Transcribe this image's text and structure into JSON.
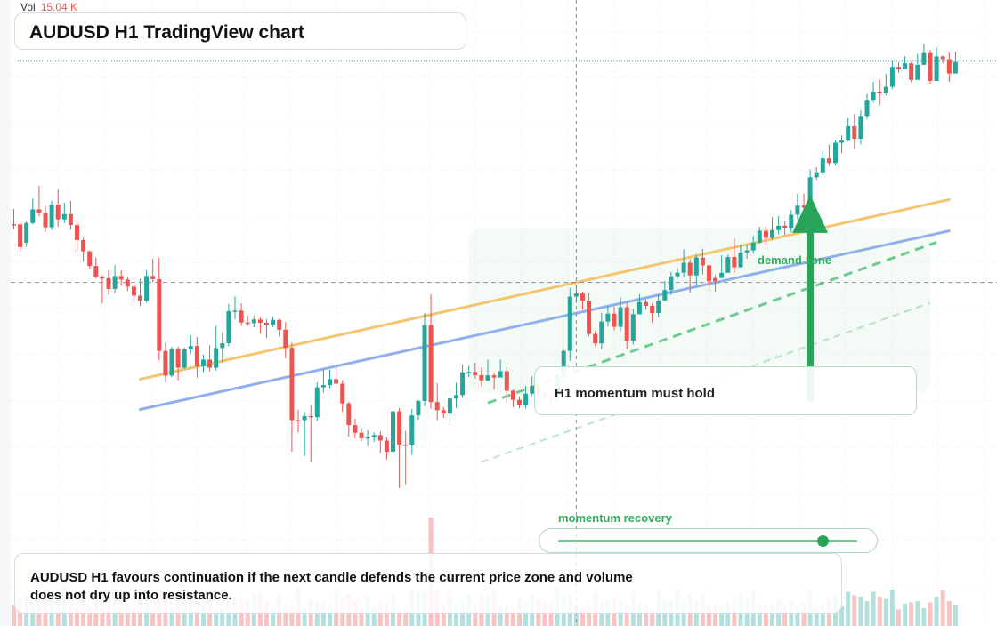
{
  "header": {
    "title": "AUDUSD H1 TradingView chart",
    "volume_label": "Vol",
    "volume_value": "15.04 K"
  },
  "annotations": {
    "zone_label": "demand zone",
    "callout": "H1 momentum must hold",
    "momentum_label": "momentum recovery",
    "momentum_level": 0.88,
    "summary": "AUDUSD H1 favours continuation if the next candle defends the current price zone and volume does not dry up into resistance."
  },
  "colors": {
    "up": "#26a69a",
    "down": "#ef5350",
    "trendline_upper": "#f5c46e",
    "trendline_lower": "#8fb0ec",
    "accent_green": "#27a457"
  },
  "chart_data": {
    "type": "candlestick",
    "symbol": "AUDUSD",
    "timeframe": "H1",
    "candle_count": 150,
    "ylim": [
      0,
      100
    ],
    "price_range": [
      0,
      100
    ],
    "crosshair": {
      "x_index": 89,
      "y": 50.6
    },
    "last_price_level": 95.2,
    "trendlines": [
      {
        "name": "upper trendline",
        "from": [
          20,
          31.1
        ],
        "to": [
          148,
          67.3
        ]
      },
      {
        "name": "lower trendline",
        "from": [
          20,
          25.0
        ],
        "to": [
          148,
          61.0
        ]
      }
    ],
    "projection_lines": [
      {
        "from": [
          75,
          26.3
        ],
        "to": [
          146,
          58.7
        ]
      },
      {
        "from": [
          74,
          14.4
        ],
        "to": [
          145,
          46.5
        ]
      }
    ],
    "demand_zone": {
      "x": [
        72,
        145
      ],
      "y": [
        28.3,
        61.6
      ]
    },
    "arrow": {
      "x": 126,
      "y": [
        27.3,
        68.3
      ]
    },
    "candles": [
      [
        62.32,
        62.32,
        65.41,
        61.39,
        "down"
      ],
      [
        62.32,
        57.72,
        62.81,
        56.79,
        "down"
      ],
      [
        58.61,
        62.59,
        63.05,
        57.81,
        "up"
      ],
      [
        62.59,
        65.33,
        67.55,
        62.35,
        "up"
      ],
      [
        65.33,
        64.69,
        70.1,
        64.01,
        "down"
      ],
      [
        64.69,
        61.72,
        65.99,
        60.73,
        "down"
      ],
      [
        61.72,
        66.32,
        67.04,
        61.16,
        "up"
      ],
      [
        66.32,
        63.32,
        69.42,
        61.82,
        "down"
      ],
      [
        63.32,
        64.37,
        66.63,
        62.55,
        "up"
      ],
      [
        64.37,
        62.17,
        67.05,
        61.25,
        "down"
      ],
      [
        62.17,
        59.14,
        62.94,
        56.79,
        "down"
      ],
      [
        59.14,
        56.87,
        59.62,
        54.77,
        "down"
      ],
      [
        56.87,
        53.92,
        57.07,
        53.33,
        "down"
      ],
      [
        53.92,
        51.66,
        55.6,
        51.36,
        "down"
      ],
      [
        51.66,
        51.46,
        52.04,
        46.39,
        "down"
      ],
      [
        51.46,
        49.29,
        53.11,
        48.16,
        "down"
      ],
      [
        49.29,
        51.9,
        54.12,
        48.37,
        "up"
      ],
      [
        51.9,
        51.19,
        53.05,
        49.98,
        "down"
      ],
      [
        51.19,
        49.76,
        51.68,
        48.86,
        "down"
      ],
      [
        49.76,
        47.94,
        50.23,
        46.64,
        "down"
      ],
      [
        47.94,
        46.89,
        51.31,
        45.79,
        "down"
      ],
      [
        46.89,
        51.91,
        53.14,
        46.54,
        "up"
      ],
      [
        51.91,
        51.27,
        55.39,
        50.65,
        "down"
      ],
      [
        51.27,
        36.79,
        55.55,
        34.92,
        "down"
      ],
      [
        36.79,
        31.83,
        38.46,
        30.45,
        "down"
      ],
      [
        31.83,
        37.29,
        37.68,
        31.47,
        "up"
      ],
      [
        37.29,
        33.41,
        37.69,
        30.83,
        "down"
      ],
      [
        33.41,
        37.16,
        37.48,
        33.17,
        "up"
      ],
      [
        37.16,
        37.79,
        39.92,
        36.26,
        "up"
      ],
      [
        37.79,
        33.68,
        39.61,
        31.42,
        "down"
      ],
      [
        33.68,
        35.04,
        36.03,
        32.51,
        "up"
      ],
      [
        35.04,
        33.41,
        37.93,
        32.68,
        "down"
      ],
      [
        33.41,
        37.38,
        41.89,
        32.83,
        "up"
      ],
      [
        37.38,
        38.35,
        40.55,
        34.47,
        "up"
      ],
      [
        38.35,
        44.82,
        46.27,
        37.74,
        "up"
      ],
      [
        44.82,
        44.93,
        47.82,
        43.19,
        "up"
      ],
      [
        44.93,
        42.53,
        46.39,
        41.85,
        "down"
      ],
      [
        42.53,
        42.39,
        43.94,
        41.86,
        "down"
      ],
      [
        42.39,
        43.13,
        43.93,
        41.56,
        "up"
      ],
      [
        43.13,
        42.48,
        43.62,
        40.37,
        "down"
      ],
      [
        42.48,
        42.08,
        43.18,
        39.37,
        "down"
      ],
      [
        42.08,
        43.06,
        43.75,
        41.55,
        "up"
      ],
      [
        43.06,
        41.06,
        43.31,
        39.72,
        "down"
      ],
      [
        41.06,
        37.43,
        42.59,
        35.28,
        "down"
      ],
      [
        37.43,
        22.84,
        38.5,
        16.51,
        "down"
      ],
      [
        22.84,
        22.84,
        25.01,
        20.39,
        "down"
      ],
      [
        22.84,
        23.68,
        24.53,
        15.56,
        "up"
      ],
      [
        23.68,
        23.44,
        25.87,
        14.3,
        "down"
      ],
      [
        23.44,
        29.46,
        30.51,
        22.66,
        "up"
      ],
      [
        29.46,
        29.91,
        33.01,
        28.4,
        "up"
      ],
      [
        29.91,
        31.12,
        33.02,
        29.26,
        "up"
      ],
      [
        31.12,
        30.19,
        34.19,
        29.4,
        "down"
      ],
      [
        30.19,
        26.23,
        30.91,
        24.54,
        "down"
      ],
      [
        26.23,
        21.83,
        26.58,
        19.53,
        "down"
      ],
      [
        21.83,
        20.3,
        23.11,
        19.17,
        "down"
      ],
      [
        20.3,
        19.21,
        21.21,
        18.59,
        "down"
      ],
      [
        19.21,
        19.4,
        20.81,
        17.66,
        "up"
      ],
      [
        19.4,
        19.83,
        20.37,
        18.48,
        "up"
      ],
      [
        19.83,
        18.74,
        20.59,
        16.17,
        "down"
      ],
      [
        18.74,
        16.47,
        19.37,
        14.9,
        "down"
      ],
      [
        16.47,
        24.62,
        25.45,
        16.16,
        "up"
      ],
      [
        24.62,
        17.93,
        25.32,
        9.16,
        "down"
      ],
      [
        17.93,
        17.93,
        20.69,
        9.93,
        "down"
      ],
      [
        17.93,
        23.81,
        25.08,
        15.84,
        "up"
      ],
      [
        23.81,
        26.71,
        26.97,
        22.89,
        "up"
      ],
      [
        26.71,
        42.01,
        44.48,
        25.64,
        "up"
      ],
      [
        42.01,
        26.48,
        48.21,
        25.15,
        "down"
      ],
      [
        26.48,
        24.85,
        30.28,
        22.84,
        "down"
      ],
      [
        24.85,
        24.16,
        25.47,
        23.29,
        "down"
      ],
      [
        24.16,
        27.2,
        28.75,
        21.68,
        "up"
      ],
      [
        27.2,
        27.9,
        30.38,
        25.29,
        "up"
      ],
      [
        27.9,
        32.49,
        34.07,
        27.33,
        "up"
      ],
      [
        32.49,
        32.55,
        33.79,
        31.49,
        "up"
      ],
      [
        32.55,
        31.92,
        34.38,
        31.24,
        "down"
      ],
      [
        31.92,
        30.85,
        33.48,
        29.67,
        "down"
      ],
      [
        30.85,
        31.87,
        35.02,
        30.68,
        "up"
      ],
      [
        31.87,
        31.43,
        32.4,
        29.06,
        "down"
      ],
      [
        31.43,
        32.71,
        35.02,
        31.74,
        "up"
      ],
      [
        32.71,
        28.77,
        33.61,
        26.35,
        "down"
      ],
      [
        28.77,
        26.93,
        29.02,
        25.5,
        "down"
      ],
      [
        26.93,
        25.8,
        27.64,
        25.22,
        "down"
      ],
      [
        25.8,
        28.19,
        29.76,
        25.19,
        "up"
      ],
      [
        28.19,
        29.72,
        31.67,
        27.71,
        "up"
      ],
      [
        29.72,
        28.33,
        30.11,
        27.79,
        "down"
      ],
      [
        28.33,
        27.45,
        28.9,
        26.89,
        "down"
      ],
      [
        27.45,
        26.99,
        28.92,
        25.37,
        "down"
      ],
      [
        26.99,
        32.05,
        33.14,
        26.29,
        "up"
      ],
      [
        32.05,
        36.8,
        37.28,
        30.64,
        "up"
      ],
      [
        36.8,
        47.75,
        49.56,
        34.79,
        "up"
      ],
      [
        47.75,
        48.37,
        50.03,
        46.48,
        "up"
      ],
      [
        48.37,
        46.96,
        48.79,
        45.11,
        "down"
      ],
      [
        46.96,
        40.22,
        48.39,
        39.73,
        "down"
      ],
      [
        40.22,
        38.31,
        40.89,
        37.75,
        "down"
      ],
      [
        38.31,
        42.72,
        44.49,
        37.16,
        "up"
      ],
      [
        42.72,
        44.31,
        45.8,
        41.69,
        "up"
      ],
      [
        44.31,
        41.66,
        45.72,
        41.0,
        "down"
      ],
      [
        41.66,
        45.59,
        47.65,
        40.8,
        "up"
      ],
      [
        45.59,
        38.85,
        46.47,
        37.18,
        "down"
      ],
      [
        38.85,
        44.2,
        45.27,
        38.07,
        "up"
      ],
      [
        44.2,
        46.65,
        48.2,
        44.15,
        "up"
      ],
      [
        46.65,
        45.88,
        47.21,
        45.11,
        "down"
      ],
      [
        45.88,
        44.45,
        46.38,
        42.5,
        "down"
      ],
      [
        44.45,
        46.98,
        48.27,
        43.56,
        "up"
      ],
      [
        46.98,
        49.07,
        50.9,
        47.92,
        "up"
      ],
      [
        49.07,
        51.85,
        52.72,
        48.04,
        "up"
      ],
      [
        51.85,
        52.57,
        53.47,
        51.3,
        "up"
      ],
      [
        52.57,
        54.58,
        57.23,
        51.57,
        "up"
      ],
      [
        54.58,
        52.02,
        55.27,
        48.52,
        "down"
      ],
      [
        52.02,
        55.61,
        56.2,
        50.09,
        "up"
      ],
      [
        55.61,
        54.04,
        57.42,
        52.23,
        "down"
      ],
      [
        54.04,
        50.83,
        54.26,
        48.98,
        "down"
      ],
      [
        50.83,
        51.5,
        52.08,
        48.78,
        "down"
      ],
      [
        51.5,
        52.54,
        56.09,
        52.13,
        "up"
      ],
      [
        52.54,
        55.72,
        56.22,
        54.57,
        "up"
      ],
      [
        55.72,
        53.65,
        59.54,
        52.48,
        "down"
      ],
      [
        53.65,
        56.66,
        58.23,
        54.64,
        "up"
      ],
      [
        56.66,
        57.07,
        58.26,
        55.39,
        "up"
      ],
      [
        57.07,
        58.64,
        59.99,
        56.41,
        "up"
      ],
      [
        58.64,
        61.03,
        61.83,
        58.44,
        "up"
      ],
      [
        61.03,
        59.61,
        61.81,
        58.08,
        "down"
      ],
      [
        59.61,
        61.15,
        63.72,
        59.08,
        "up"
      ],
      [
        61.15,
        62.03,
        63.98,
        60.29,
        "up"
      ],
      [
        62.03,
        61.63,
        62.96,
        60.13,
        "down"
      ],
      [
        61.63,
        64.26,
        65.17,
        60.71,
        "up"
      ],
      [
        64.26,
        66.09,
        68.51,
        63.37,
        "up"
      ],
      [
        66.09,
        65.74,
        68.48,
        63.81,
        "down"
      ],
      [
        65.74,
        71.81,
        73.37,
        64.95,
        "up"
      ],
      [
        71.81,
        72.8,
        73.86,
        71.27,
        "up"
      ],
      [
        72.8,
        75.6,
        77.06,
        72.2,
        "up"
      ],
      [
        75.6,
        74.68,
        78.37,
        74.14,
        "down"
      ],
      [
        74.68,
        78.76,
        79.23,
        74.27,
        "up"
      ],
      [
        78.76,
        79.19,
        80.24,
        76.62,
        "up"
      ],
      [
        79.19,
        82.1,
        83.73,
        78.99,
        "up"
      ],
      [
        82.1,
        79.56,
        84.56,
        77.46,
        "down"
      ],
      [
        79.56,
        84.01,
        85.33,
        78.42,
        "up"
      ],
      [
        84.01,
        87.26,
        88.6,
        83.55,
        "up"
      ],
      [
        87.26,
        88.97,
        90.99,
        86.84,
        "up"
      ],
      [
        88.97,
        88.71,
        91.43,
        86.42,
        "down"
      ],
      [
        88.71,
        90.05,
        92.67,
        88.28,
        "up"
      ],
      [
        90.05,
        94.04,
        95.19,
        89.65,
        "up"
      ],
      [
        94.04,
        93.53,
        94.98,
        92.92,
        "down"
      ],
      [
        93.53,
        94.77,
        96.21,
        93.67,
        "up"
      ],
      [
        94.77,
        91.43,
        95.05,
        90.92,
        "down"
      ],
      [
        91.43,
        94.47,
        96.67,
        93.15,
        "up"
      ],
      [
        94.47,
        96.84,
        98.7,
        94.67,
        "up"
      ],
      [
        96.84,
        91.22,
        97.52,
        90.59,
        "down"
      ],
      [
        91.22,
        96.17,
        97.97,
        93.89,
        "up"
      ],
      [
        96.17,
        95.62,
        96.3,
        94.71,
        "down"
      ],
      [
        95.62,
        92.72,
        97.02,
        91.02,
        "down"
      ],
      [
        92.72,
        95.06,
        97.14,
        93.07,
        "up"
      ]
    ],
    "volume": [
      18,
      24,
      26,
      20,
      32,
      27,
      26,
      23,
      33,
      19,
      15,
      28,
      17,
      20,
      22,
      25,
      35,
      25,
      18,
      15,
      24,
      31,
      16,
      30,
      27,
      16,
      27,
      22,
      24,
      21,
      19,
      27,
      15,
      15,
      23,
      25,
      23,
      23,
      28,
      29,
      21,
      16,
      26,
      18,
      20,
      33,
      15,
      23,
      20,
      22,
      19,
      29,
      24,
      27,
      22,
      16,
      26,
      17,
      22,
      20,
      27,
      15,
      16,
      30,
      29,
      28,
      92,
      30,
      19,
      29,
      17,
      22,
      27,
      17,
      28,
      28,
      30,
      17,
      18,
      16,
      24,
      20,
      27,
      23,
      22,
      20,
      33,
      27,
      27,
      18,
      16,
      19,
      29,
      20,
      23,
      25,
      22,
      18,
      29,
      20,
      18,
      16,
      30,
      22,
      22,
      31,
      20,
      26,
      21,
      28,
      18,
      19,
      18,
      20,
      26,
      28,
      24,
      30,
      18,
      18,
      19,
      23,
      18,
      22,
      18,
      20,
      29,
      16,
      18,
      23,
      26,
      17,
      29,
      26,
      25,
      21,
      29,
      25,
      23,
      31,
      14,
      19,
      20,
      21,
      15,
      20,
      25,
      30,
      21,
      18
    ]
  }
}
